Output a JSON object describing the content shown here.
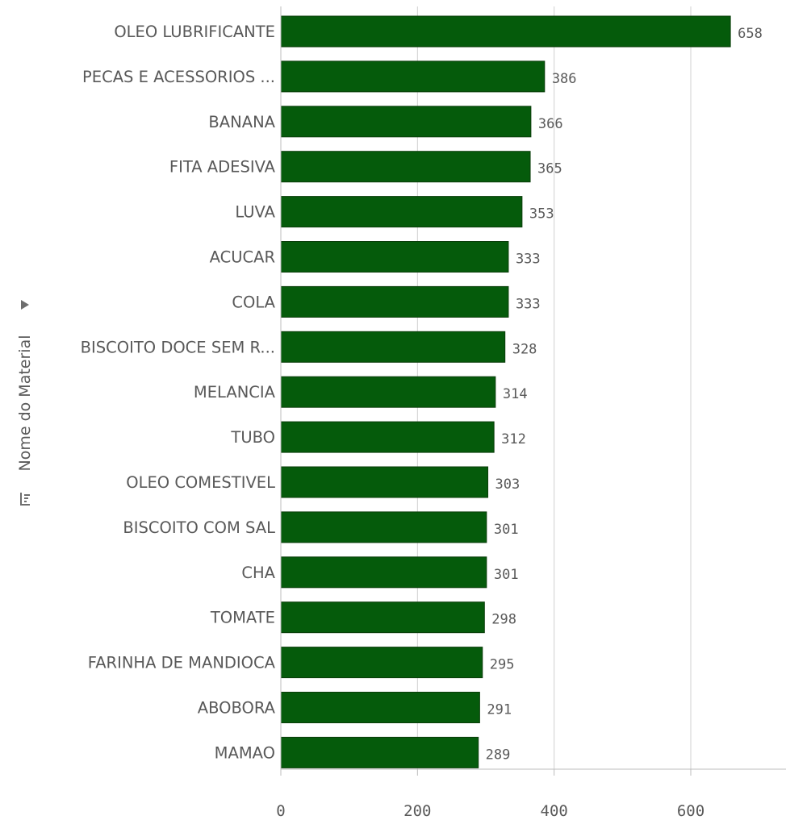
{
  "chart_data": {
    "type": "bar",
    "orientation": "horizontal",
    "categories": [
      "OLEO LUBRIFICANTE",
      "PECAS E ACESSORIOS ...",
      "BANANA",
      "FITA ADESIVA",
      "LUVA",
      "ACUCAR",
      "COLA",
      "BISCOITO DOCE SEM R...",
      "MELANCIA",
      "TUBO",
      "OLEO COMESTIVEL",
      "BISCOITO COM SAL",
      "CHA",
      "TOMATE",
      "FARINHA DE MANDIOCA",
      "ABOBORA",
      "MAMAO"
    ],
    "values": [
      658,
      386,
      366,
      365,
      353,
      333,
      333,
      328,
      314,
      312,
      303,
      301,
      301,
      298,
      295,
      291,
      289
    ],
    "value_labels": [
      "658",
      "386",
      "366",
      "365",
      "353",
      "333",
      "333",
      "328",
      "314",
      "312",
      "303",
      "301",
      "301",
      "298",
      "295",
      "291",
      "289"
    ],
    "xlim": [
      0,
      740
    ],
    "xticks": [
      0,
      200,
      400,
      600
    ],
    "xtick_labels": [
      "0",
      "200",
      "400",
      "600"
    ],
    "ylabel": "Nome do Material",
    "xlabel": "",
    "title": "",
    "grid": true,
    "legend": "none",
    "bar_color": "#055b0b",
    "bar_border_color": "#0a3d0a",
    "grid_color": "#d0d0d0",
    "text_color": "#595959"
  },
  "icons": {
    "expand": "triangle-right-icon",
    "sort": "sort-icon"
  }
}
